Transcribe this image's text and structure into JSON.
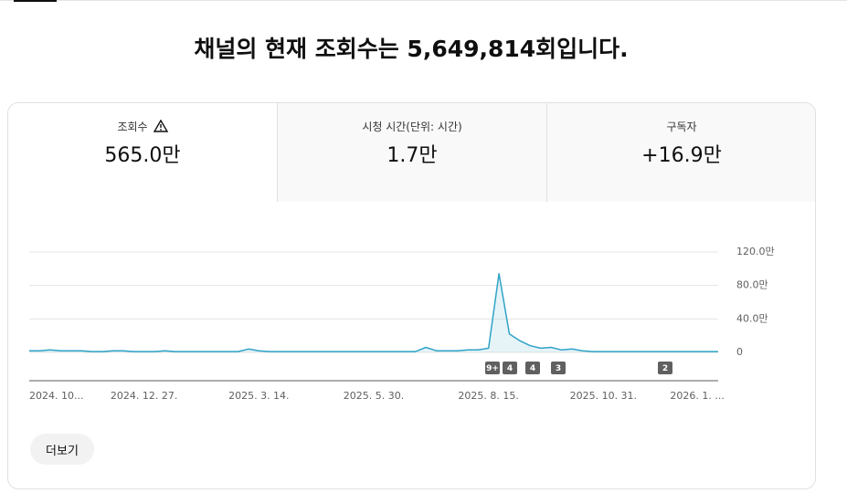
{
  "header": {
    "title": "채널의 현재 조회수는 5,649,814회입니다."
  },
  "tabs": [
    {
      "label": "조회수",
      "value": "565.0만"
    },
    {
      "label": "시청 시간(단위: 시간)",
      "value": "1.7만"
    },
    {
      "label": "구독자",
      "value": "+16.9만"
    }
  ],
  "chart_data": {
    "type": "line",
    "categories": [
      "2024. 10...",
      null,
      null,
      null,
      null,
      null,
      null,
      null,
      null,
      null,
      null,
      "2024. 12. 27.",
      null,
      null,
      null,
      null,
      null,
      null,
      null,
      null,
      null,
      null,
      "2025. 3. 14.",
      null,
      null,
      null,
      null,
      null,
      null,
      null,
      null,
      null,
      null,
      "2025. 5. 30.",
      null,
      null,
      null,
      null,
      null,
      null,
      null,
      null,
      null,
      null,
      "2025. 8. 15.",
      null,
      null,
      null,
      null,
      null,
      null,
      null,
      null,
      null,
      null,
      "2025. 10. 31.",
      null,
      null,
      null,
      null,
      null,
      null,
      null,
      null,
      "2026. 1. ...",
      null,
      null
    ],
    "values": [
      2,
      2,
      3,
      2,
      2,
      2,
      1,
      1,
      2,
      2,
      1,
      1,
      1,
      2,
      1,
      1,
      1,
      1,
      1,
      1,
      1,
      4,
      2,
      1,
      1,
      1,
      1,
      1,
      1,
      1,
      1,
      1,
      1,
      1,
      1,
      1,
      1,
      1,
      6,
      2,
      2,
      2,
      3,
      3,
      5,
      94,
      22,
      14,
      8,
      5,
      6,
      3,
      4,
      2,
      1,
      1,
      1,
      1,
      1,
      1,
      1,
      1,
      1,
      1,
      1,
      1,
      1
    ],
    "color": "#2fa3c7",
    "ylim": [
      0,
      120
    ],
    "yticks": [
      0,
      {
        "value": 40,
        "label": "40.0만"
      },
      {
        "value": 80,
        "label": "80.0만"
      },
      {
        "value": 120,
        "label": "120.0만"
      }
    ],
    "grid": true,
    "annotations": [
      "9+",
      "4",
      "4",
      "3",
      "2"
    ]
  },
  "button": {
    "label": "더보기"
  }
}
